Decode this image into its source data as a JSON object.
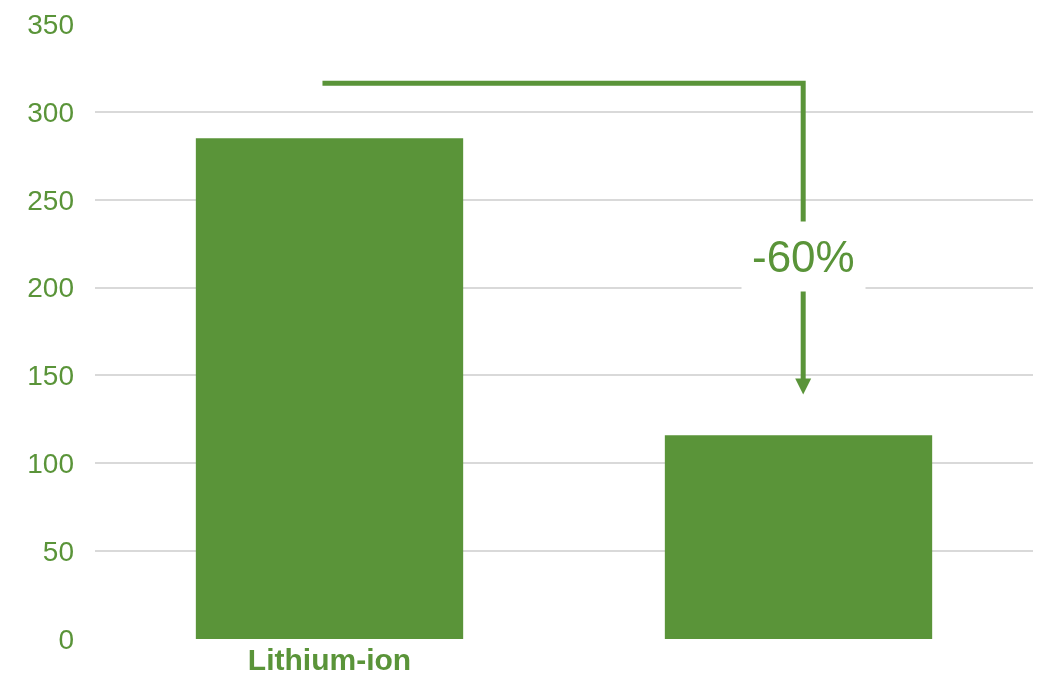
{
  "chart_data": {
    "type": "bar",
    "categories": [
      "Lithium-ion",
      null
    ],
    "values": [
      285,
      116
    ],
    "color": "#5a9439",
    "ylim": [
      0,
      350
    ],
    "yticks": [
      0,
      50,
      100,
      150,
      200,
      250,
      300,
      350
    ],
    "grid": "y",
    "annotations": [
      "-60%"
    ]
  }
}
